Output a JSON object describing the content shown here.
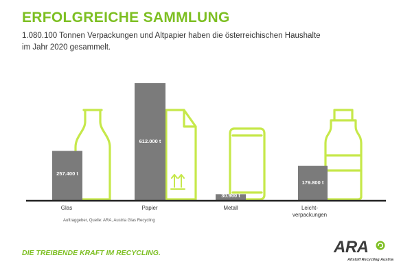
{
  "header": {
    "title": "ERFOLGREICHE SAMMLUNG",
    "subtitle": "1.080.100 Tonnen Verpackungen und Altpapier haben die österreichischen Haushalte im Jahr 2020 gesammelt."
  },
  "chart_data": {
    "type": "bar",
    "categories": [
      "Glas",
      "Papier",
      "Metall",
      "Leicht-\nverpackungen"
    ],
    "series": [
      {
        "values": [
          257400,
          612000,
          30900,
          179800
        ]
      }
    ],
    "value_labels": [
      "257.400 t",
      "612.000 t",
      "30.900 t",
      "179.800 t"
    ],
    "unit": "t",
    "icons": [
      "bottle-icon",
      "cardboard-box-icon",
      "can-icon",
      "plastic-bottle-icon"
    ],
    "xlabel": "",
    "ylabel": "",
    "colors": {
      "bar": "#7b7b7b",
      "icon": "#c6e84a",
      "baseline": "#222222"
    }
  },
  "footer": {
    "source": "Auftraggeber, Quelle: ARA, Austria Glas Recycling",
    "slogan": "DIE TREIBENDE KRAFT IM RECYCLING.",
    "logo_text": "ARA",
    "logo_subtitle": "Altstoff Recycling Austria"
  },
  "colors": {
    "accent": "#7dbf22",
    "logo": "#3c3c3c"
  }
}
